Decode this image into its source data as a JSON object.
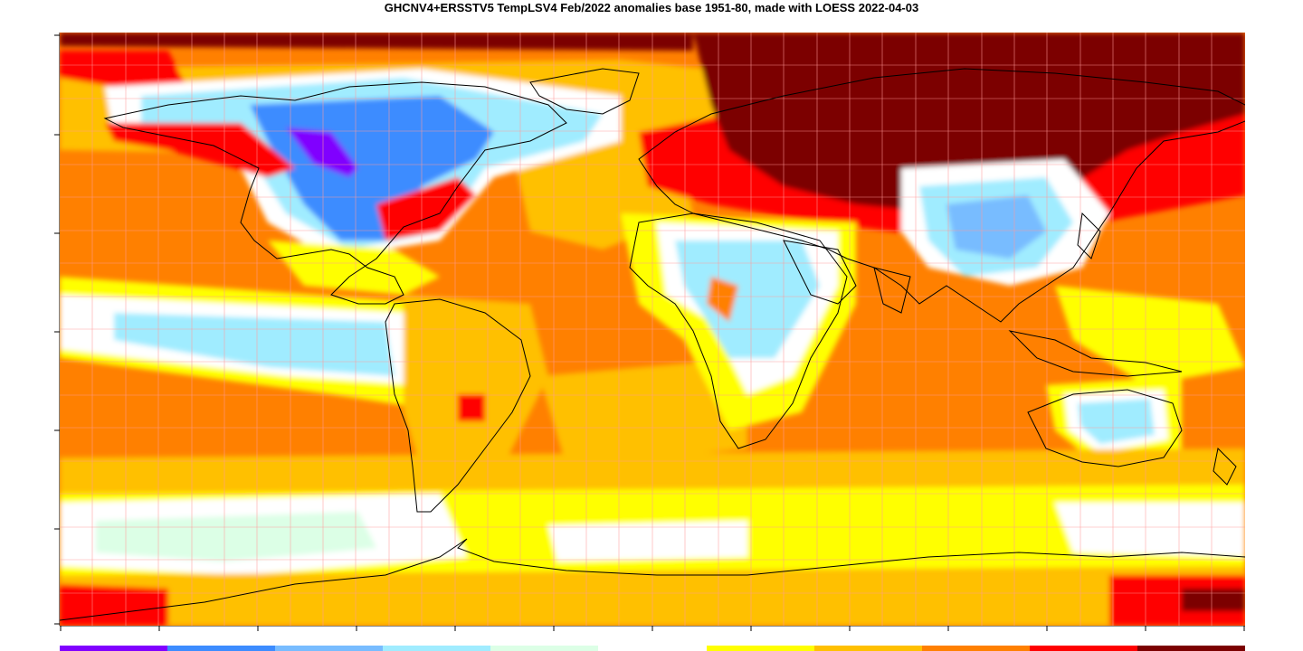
{
  "title": "GHCNV4+ERSSTV5 TempLSV4 Feb/2022 anomalies base 1951-80, made with LOESS 2022-04-03",
  "colors": {
    "ocean_base": "#ff8000",
    "grid": "#ff9a9a",
    "coast": "#000000",
    "dark_red": "#7b0000",
    "red": "#ff0000",
    "orange": "#ff8000",
    "amber": "#ffc000",
    "yellow": "#ffff00",
    "white": "#ffffff",
    "pale_green": "#dcffe6",
    "light_cyan": "#a0ecff",
    "light_blue": "#78bcff",
    "blue": "#3c8cff",
    "purple": "#8000ff"
  },
  "legend": {
    "swatches": [
      {
        "name": "legend-swatch-purple",
        "color": "#8000ff"
      },
      {
        "name": "legend-swatch-blue",
        "color": "#3c8cff"
      },
      {
        "name": "legend-swatch-light-blue",
        "color": "#78bcff"
      },
      {
        "name": "legend-swatch-light-cyan",
        "color": "#a0ecff"
      },
      {
        "name": "legend-swatch-pale-green",
        "color": "#dcffe6"
      },
      {
        "name": "legend-swatch-white",
        "color": "#ffffff"
      },
      {
        "name": "legend-swatch-yellow",
        "color": "#ffff00"
      },
      {
        "name": "legend-swatch-amber",
        "color": "#ffc000"
      },
      {
        "name": "legend-swatch-orange",
        "color": "#ff8000"
      },
      {
        "name": "legend-swatch-red",
        "color": "#ff0000"
      },
      {
        "name": "legend-swatch-dark-red",
        "color": "#7b0000"
      }
    ]
  }
}
